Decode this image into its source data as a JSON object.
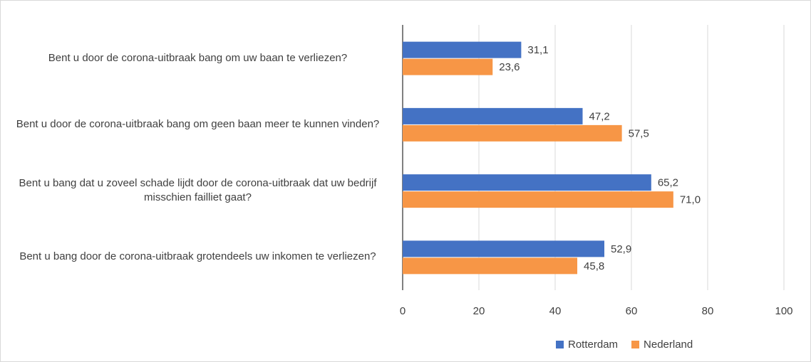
{
  "chart_data": {
    "type": "bar",
    "orientation": "horizontal",
    "categories": [
      "Bent u door de corona-uitbraak bang om uw baan te verliezen?",
      "Bent u door de corona-uitbraak bang om geen baan meer te kunnen vinden?",
      "Bent u bang dat u zoveel schade lijdt door de corona-uitbraak dat uw bedrijf misschien failliet gaat?",
      "Bent u bang door de corona-uitbraak grotendeels uw inkomen te verliezen?"
    ],
    "series": [
      {
        "name": "Rotterdam",
        "color": "#4472c4",
        "values": [
          31.1,
          47.2,
          65.2,
          52.9
        ],
        "value_labels": [
          "31,1",
          "47,2",
          "65,2",
          "52,9"
        ]
      },
      {
        "name": "Nederland",
        "color": "#f79646",
        "values": [
          23.6,
          57.5,
          71.0,
          45.8
        ],
        "value_labels": [
          "23,6",
          "57,5",
          "71,0",
          "45,8"
        ]
      }
    ],
    "xlim": [
      0,
      100
    ],
    "xticks": [
      0,
      20,
      40,
      60,
      80,
      100
    ],
    "grid": true,
    "legend": "bottom"
  }
}
